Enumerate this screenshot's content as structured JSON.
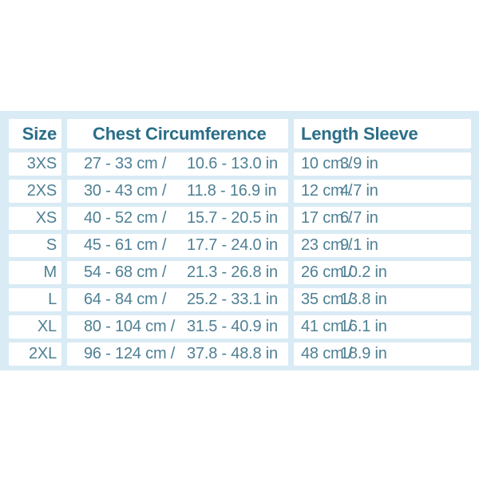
{
  "size_chart": {
    "headers": {
      "size": "Size",
      "chest": "Chest Circumference",
      "sleeve": "Length Sleeve"
    },
    "separator": "/",
    "rows": [
      {
        "size": "3XS",
        "chest_cm": "27 - 33 cm",
        "chest_in": "10.6 - 13.0 in",
        "sleeve_cm": "10 cm",
        "sleeve_in": "3.9 in"
      },
      {
        "size": "2XS",
        "chest_cm": "30 - 43 cm",
        "chest_in": "11.8 - 16.9 in",
        "sleeve_cm": "12 cm",
        "sleeve_in": "4.7 in"
      },
      {
        "size": "XS",
        "chest_cm": "40 - 52 cm",
        "chest_in": "15.7 - 20.5 in",
        "sleeve_cm": "17 cm",
        "sleeve_in": "6.7 in"
      },
      {
        "size": "S",
        "chest_cm": "45 - 61 cm",
        "chest_in": "17.7 - 24.0 in",
        "sleeve_cm": "23 cm",
        "sleeve_in": "9.1 in"
      },
      {
        "size": "M",
        "chest_cm": "54 - 68 cm",
        "chest_in": "21.3 - 26.8 in",
        "sleeve_cm": "26 cm",
        "sleeve_in": "10.2 in"
      },
      {
        "size": "L",
        "chest_cm": "64 - 84 cm",
        "chest_in": "25.2 - 33.1 in",
        "sleeve_cm": "35 cm",
        "sleeve_in": "13.8 in"
      },
      {
        "size": "XL",
        "chest_cm": "80 - 104 cm",
        "chest_in": "31.5 - 40.9 in",
        "sleeve_cm": "41 cm",
        "sleeve_in": "16.1 in"
      },
      {
        "size": "2XL",
        "chest_cm": "96 - 124 cm",
        "chest_in": "37.8 - 48.8 in",
        "sleeve_cm": "48 cm",
        "sleeve_in": "18.9 in"
      }
    ]
  },
  "colors": {
    "panel": "#d9ebf5",
    "cell_bg": "#ffffff",
    "header_text": "#2a6e88",
    "body_text": "#4e8094"
  }
}
